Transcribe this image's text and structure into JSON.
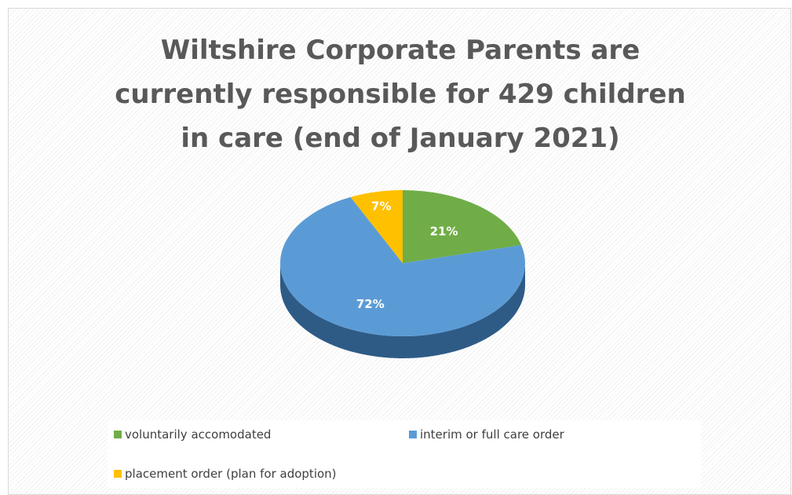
{
  "chart_data": {
    "type": "pie",
    "title_lines": [
      "Wiltshire Corporate Parents are",
      "currently responsible for 429 children",
      "in care (end of January 2021)"
    ],
    "slices": [
      {
        "name": "voluntarily accomodated",
        "value": 21,
        "label": "21%",
        "color": "#70ad47",
        "dark": "#4a7a2c"
      },
      {
        "name": "interim or full care order",
        "value": 72,
        "label": "72%",
        "color": "#5b9bd5",
        "dark": "#2e5b86"
      },
      {
        "name": "placement order (plan for adoption)",
        "value": 7,
        "label": "7%",
        "color": "#ffc000",
        "dark": "#b88a00"
      }
    ],
    "legend_position": "bottom",
    "style": "3d-pie"
  }
}
